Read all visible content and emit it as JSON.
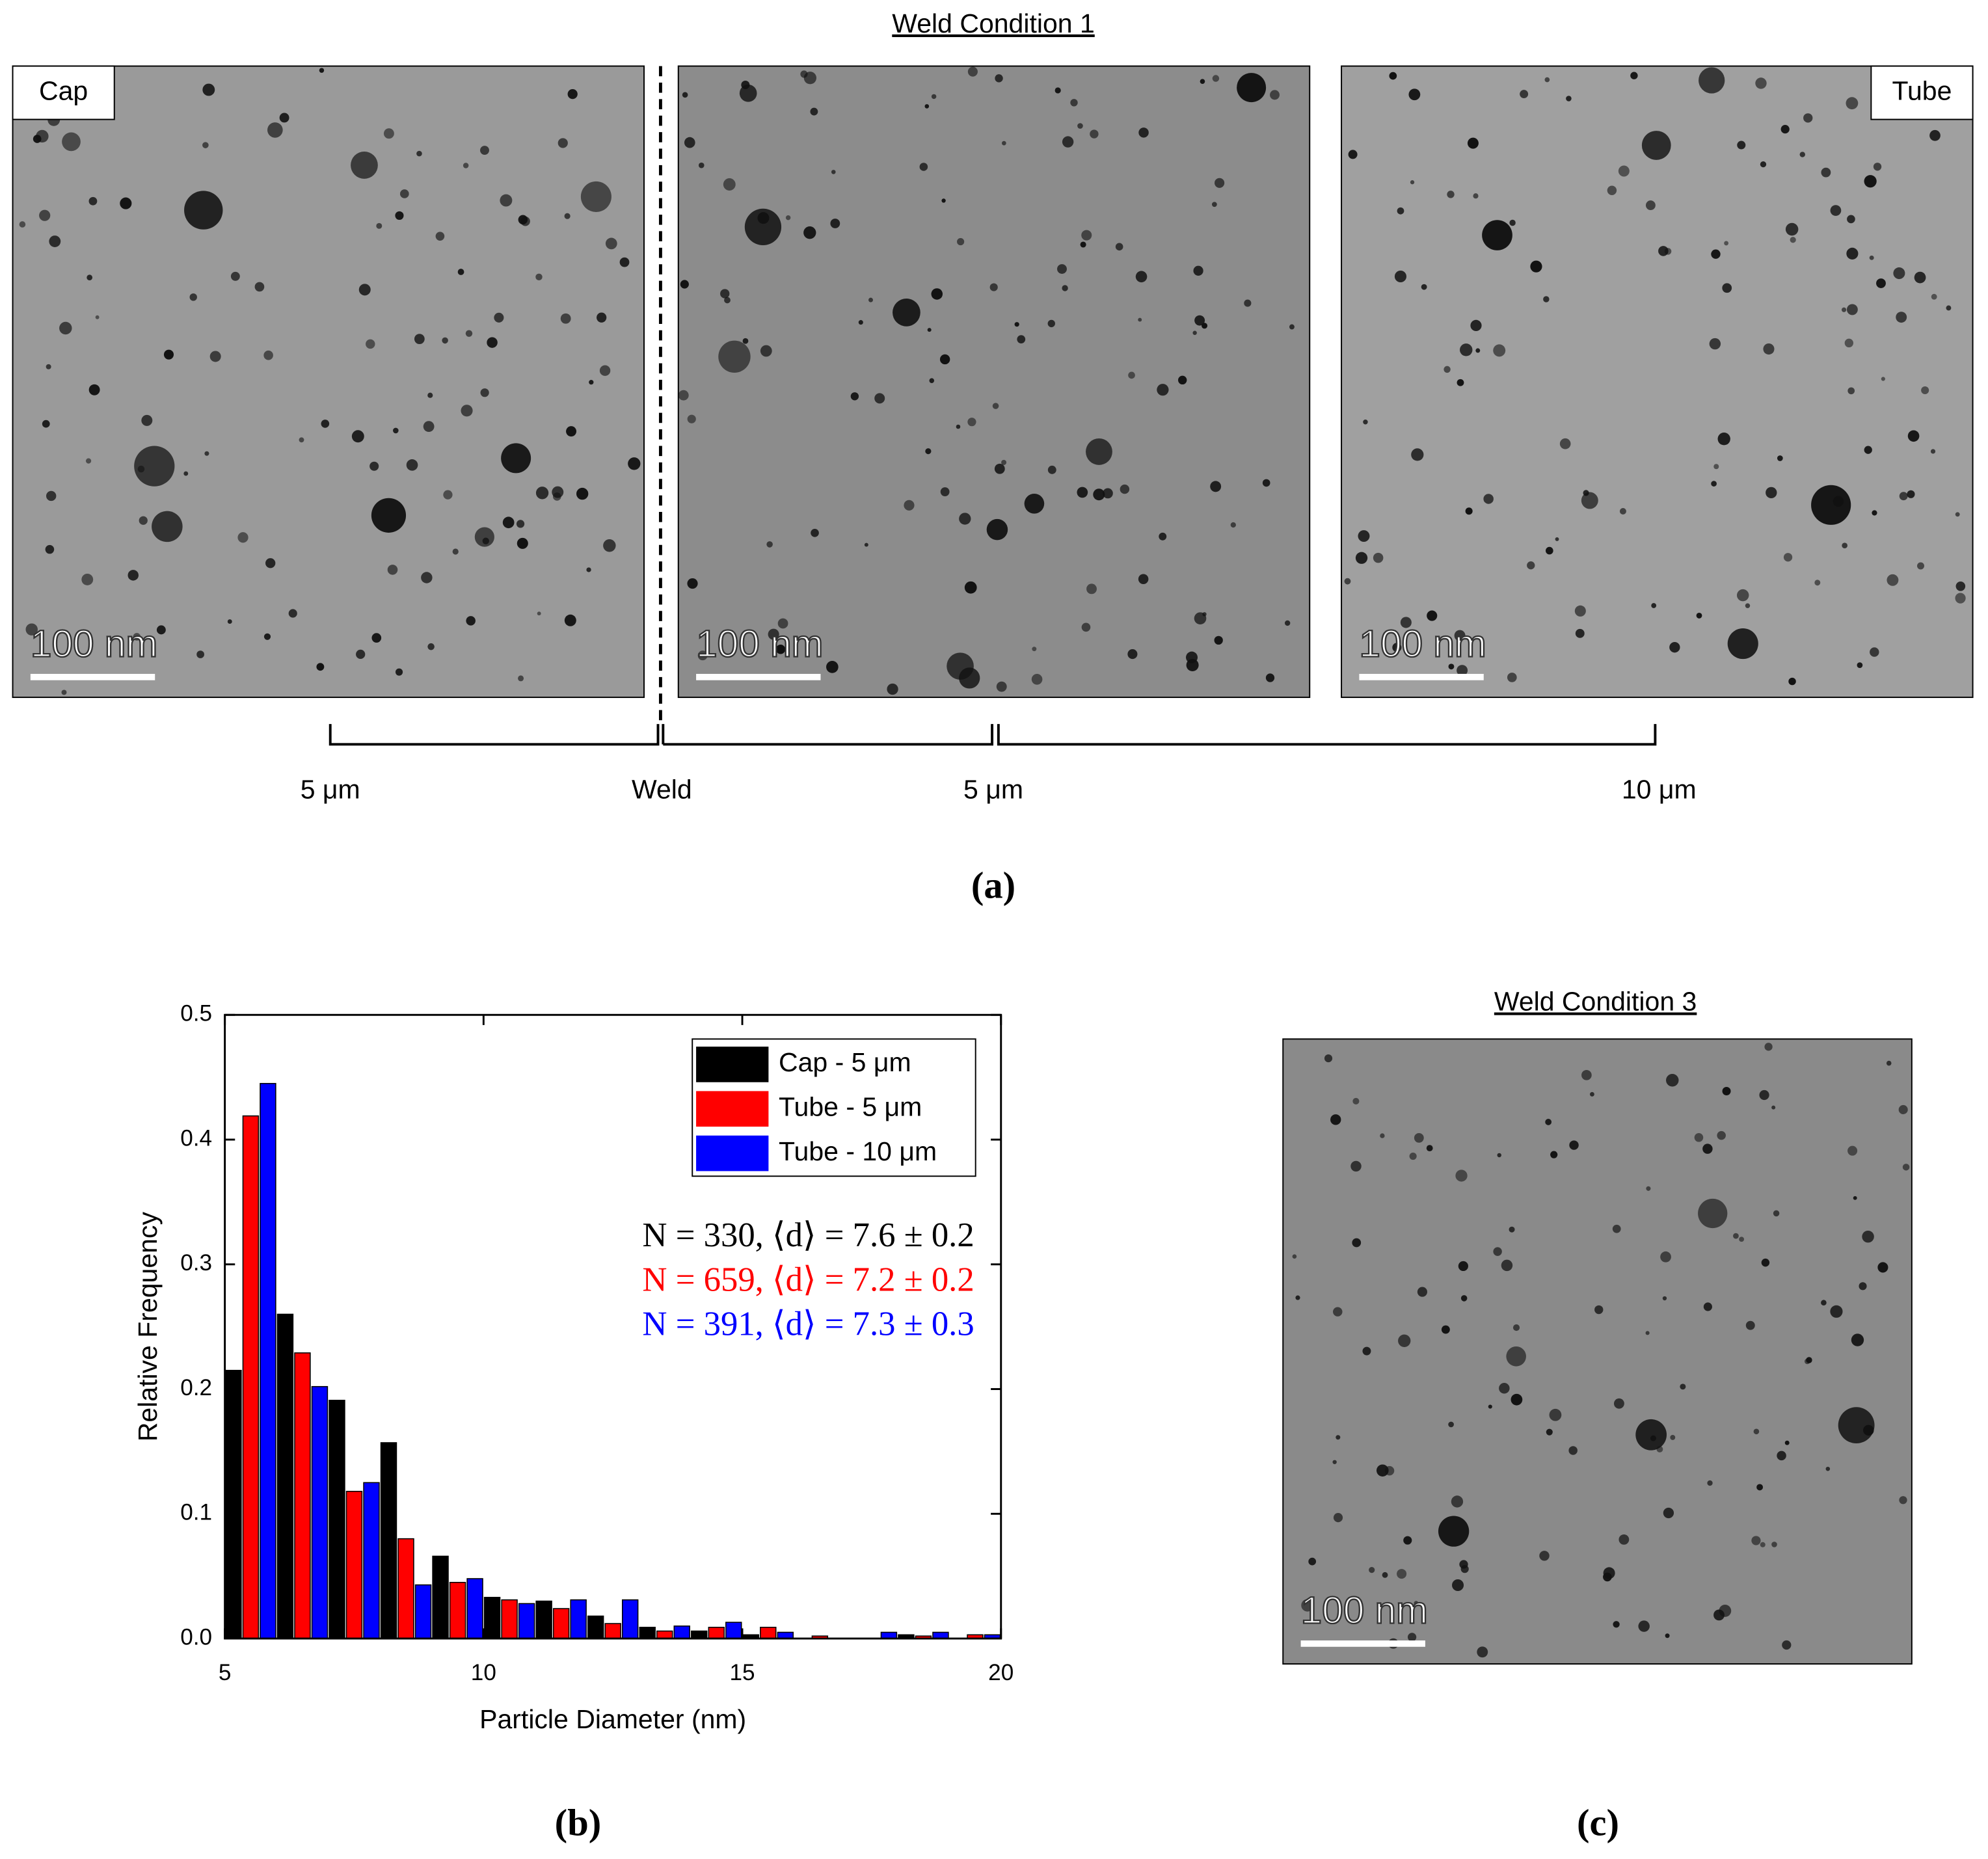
{
  "panel_a": {
    "title": "Weld Condition 1",
    "labels": [
      "Cap",
      "Tube"
    ],
    "scale_bars": [
      "100 nm",
      "100 nm",
      "100 nm"
    ],
    "positions": [
      "5 μm",
      "Weld",
      "5 μm",
      "10 μm"
    ]
  },
  "chart_data": {
    "type": "bar",
    "xlabel": "Particle Diameter (nm)",
    "ylabel": "Relative Frequency",
    "x": [
      5.5,
      6.5,
      7.5,
      8.5,
      9.5,
      10.5,
      11.5,
      12.5,
      13.5,
      14.5,
      15.5,
      16.5,
      17.5,
      18.5,
      19.5
    ],
    "series": [
      {
        "name": "Cap - 5 μm",
        "color": "#000000",
        "values": [
          0.215,
          0.26,
          0.191,
          0.157,
          0.066,
          0.033,
          0.03,
          0.018,
          0.009,
          0.006,
          0.003,
          0,
          0,
          0.003,
          0
        ]
      },
      {
        "name": "Tube - 5 μm",
        "color": "#ff0000",
        "values": [
          0.419,
          0.229,
          0.118,
          0.08,
          0.045,
          0.031,
          0.024,
          0.012,
          0.006,
          0.009,
          0.009,
          0.002,
          0,
          0.002,
          0.003
        ]
      },
      {
        "name": "Tube - 10 μm",
        "color": "#0000ff",
        "values": [
          0.445,
          0.202,
          0.125,
          0.043,
          0.048,
          0.028,
          0.031,
          0.031,
          0.01,
          0.013,
          0.005,
          0,
          0.005,
          0.005,
          0.003
        ]
      }
    ],
    "xlim": [
      5,
      20
    ],
    "xticks": [
      5,
      10,
      15,
      20
    ],
    "ylim": [
      0,
      0.5
    ],
    "yticks": [
      {
        "value": 0,
        "label": "0.0"
      },
      0.1,
      0.2,
      0.3,
      0.4,
      0.5
    ],
    "legend": "upper right",
    "annotations": [
      {
        "text": "N = 330, ⟨d⟩ = 7.6 ± 0.2",
        "color": "#000000"
      },
      {
        "text": "N = 659, ⟨d⟩ = 7.2 ± 0.2",
        "color": "#ff0000"
      },
      {
        "text": "N = 391, ⟨d⟩ = 7.3 ± 0.3",
        "color": "#0000ff"
      }
    ]
  },
  "panel_c": {
    "title": "Weld Condition 3",
    "scale_bar": "100 nm"
  },
  "captions": [
    "(a)",
    "(b)",
    "(c)"
  ]
}
